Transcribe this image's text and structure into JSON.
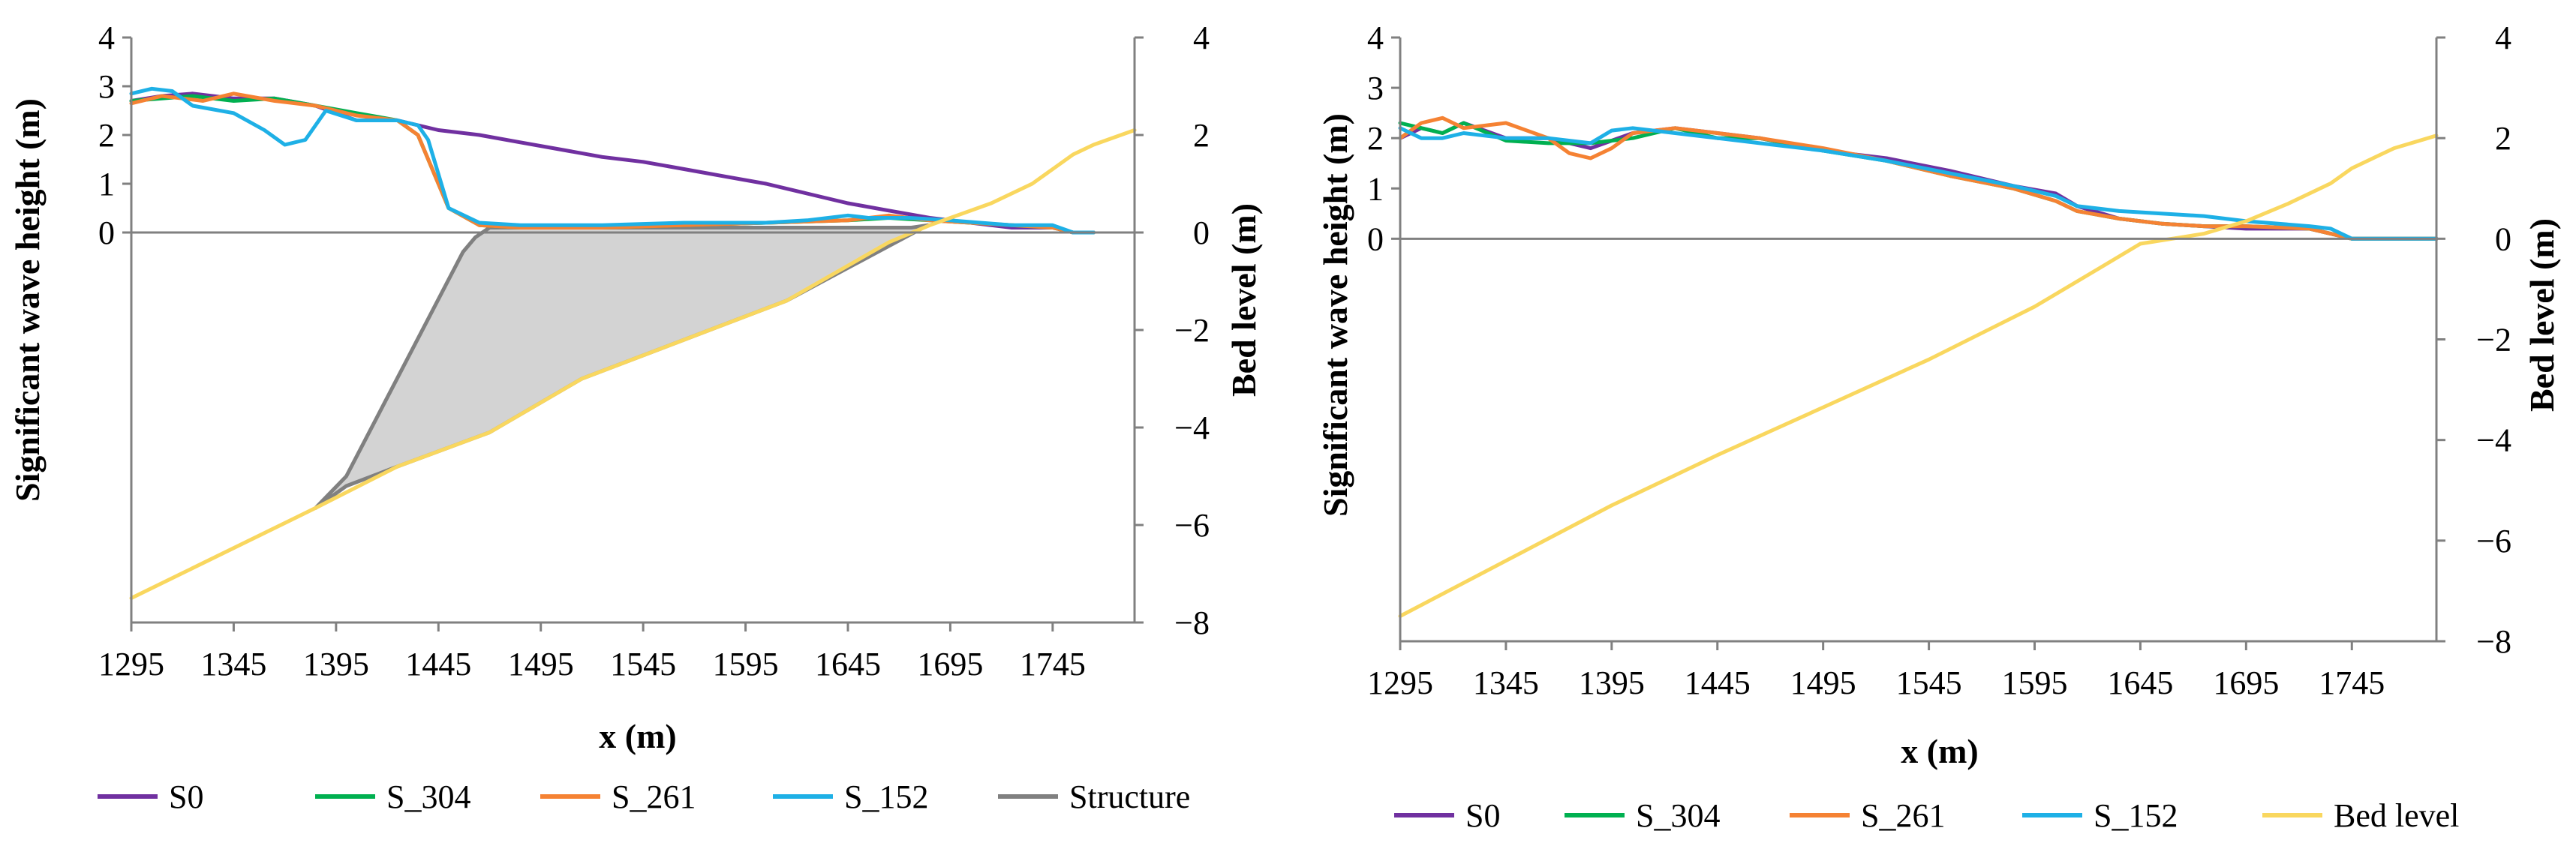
{
  "colors": {
    "S0": "#7030A0",
    "S_304": "#00B050",
    "S_261": "#F58233",
    "S_152": "#1EB0E6",
    "Structure": "#808080",
    "structure_fill": "#D3D3D3",
    "Bed level": "#F9D75F"
  },
  "chart_data": [
    {
      "type": "line",
      "xlabel": "x (m)",
      "ylabel": "Significant wave height (m)",
      "y2label": "Bed level (m)",
      "xlim": [
        1295,
        1785
      ],
      "ylim": [
        -8,
        4
      ],
      "y2lim": [
        -8,
        4
      ],
      "x_ticks": [
        1295,
        1345,
        1395,
        1445,
        1495,
        1545,
        1595,
        1645,
        1695,
        1745
      ],
      "y_ticks": [
        0,
        1,
        2,
        3,
        4
      ],
      "y2_ticks": [
        -8,
        -6,
        -4,
        -2,
        0,
        2,
        4
      ],
      "legend": [
        "S0",
        "S_304",
        "S_261",
        "S_152",
        "Structure"
      ],
      "legend_position": "bottom",
      "grid": false,
      "series": [
        {
          "name": "S0",
          "axis": "y",
          "x": [
            1295,
            1310,
            1325,
            1345,
            1365,
            1385,
            1405,
            1425,
            1445,
            1465,
            1485,
            1505,
            1525,
            1545,
            1565,
            1585,
            1605,
            1625,
            1645,
            1665,
            1685,
            1705,
            1725,
            1745,
            1755,
            1765
          ],
          "y": [
            2.7,
            2.8,
            2.85,
            2.75,
            2.75,
            2.6,
            2.3,
            2.3,
            2.1,
            2.0,
            1.85,
            1.7,
            1.55,
            1.45,
            1.3,
            1.15,
            1.0,
            0.8,
            0.6,
            0.45,
            0.3,
            0.2,
            0.1,
            0.1,
            0.0,
            0.0
          ]
        },
        {
          "name": "S_304",
          "axis": "y",
          "x": [
            1295,
            1310,
            1325,
            1345,
            1365,
            1385,
            1405,
            1425,
            1435,
            1450,
            1465,
            1485,
            1525,
            1565,
            1605,
            1645,
            1665,
            1685,
            1705,
            1725,
            1745,
            1755,
            1765
          ],
          "y": [
            2.7,
            2.75,
            2.8,
            2.7,
            2.75,
            2.6,
            2.45,
            2.3,
            2.0,
            0.5,
            0.15,
            0.1,
            0.1,
            0.15,
            0.2,
            0.25,
            0.3,
            0.25,
            0.2,
            0.15,
            0.1,
            0.0,
            0.0
          ]
        },
        {
          "name": "S_261",
          "axis": "y",
          "x": [
            1295,
            1310,
            1330,
            1345,
            1365,
            1385,
            1405,
            1425,
            1435,
            1450,
            1465,
            1485,
            1525,
            1565,
            1605,
            1645,
            1665,
            1685,
            1705,
            1725,
            1745,
            1755,
            1765
          ],
          "y": [
            2.65,
            2.8,
            2.7,
            2.85,
            2.7,
            2.6,
            2.4,
            2.3,
            2.0,
            0.5,
            0.15,
            0.1,
            0.1,
            0.15,
            0.2,
            0.25,
            0.35,
            0.25,
            0.2,
            0.15,
            0.1,
            0.0,
            0.0
          ]
        },
        {
          "name": "S_152",
          "axis": "y",
          "x": [
            1295,
            1305,
            1315,
            1325,
            1345,
            1360,
            1370,
            1380,
            1390,
            1405,
            1425,
            1435,
            1440,
            1450,
            1465,
            1485,
            1525,
            1565,
            1605,
            1625,
            1645,
            1655,
            1675,
            1695,
            1725,
            1745,
            1755,
            1765
          ],
          "y": [
            2.85,
            2.95,
            2.9,
            2.6,
            2.45,
            2.1,
            1.8,
            1.9,
            2.5,
            2.3,
            2.3,
            2.2,
            1.9,
            0.5,
            0.2,
            0.15,
            0.15,
            0.2,
            0.2,
            0.25,
            0.35,
            0.3,
            0.3,
            0.25,
            0.15,
            0.15,
            0.0,
            0.0
          ]
        },
        {
          "name": "Structure",
          "axis": "y2",
          "shape": "polygon",
          "x": [
            1385,
            1400,
            1457,
            1463,
            1470,
            1676,
            1684,
            1615,
            1565,
            1515,
            1470,
            1425,
            1400,
            1385
          ],
          "y": [
            -5.65,
            -5.0,
            -0.4,
            -0.1,
            0.1,
            0.1,
            0.15,
            -1.4,
            -2.2,
            -3.0,
            -4.1,
            -4.8,
            -5.2,
            -5.65
          ]
        },
        {
          "name": "Bed level",
          "axis": "y2",
          "x": [
            1295,
            1385,
            1425,
            1470,
            1515,
            1565,
            1615,
            1665,
            1685,
            1715,
            1735,
            1745,
            1755,
            1765,
            1785
          ],
          "y": [
            -7.5,
            -5.65,
            -4.8,
            -4.1,
            -3.0,
            -2.2,
            -1.4,
            -0.2,
            0.15,
            0.6,
            1.0,
            1.3,
            1.6,
            1.8,
            2.1
          ]
        }
      ]
    },
    {
      "type": "line",
      "xlabel": "x (m)",
      "ylabel": "Significant wave height (m)",
      "y2label": "Bed level (m)",
      "xlim": [
        1295,
        1785
      ],
      "ylim": [
        -8,
        4
      ],
      "y2lim": [
        -8,
        4
      ],
      "x_ticks": [
        1295,
        1345,
        1395,
        1445,
        1495,
        1545,
        1595,
        1645,
        1695,
        1745
      ],
      "y_ticks": [
        0,
        1,
        2,
        3,
        4
      ],
      "y2_ticks": [
        -8,
        -6,
        -4,
        -2,
        0,
        2,
        4
      ],
      "legend": [
        "S0",
        "S_304",
        "S_261",
        "S_152",
        "Bed level"
      ],
      "legend_position": "bottom",
      "grid": false,
      "series": [
        {
          "name": "S0",
          "axis": "y",
          "x": [
            1295,
            1305,
            1315,
            1325,
            1345,
            1365,
            1385,
            1405,
            1425,
            1445,
            1465,
            1495,
            1525,
            1555,
            1585,
            1605,
            1615,
            1635,
            1655,
            1675,
            1695,
            1725,
            1735,
            1745,
            1765,
            1785
          ],
          "y": [
            2.0,
            2.2,
            2.1,
            2.3,
            2.0,
            2.0,
            1.8,
            2.1,
            2.2,
            2.1,
            2.0,
            1.75,
            1.6,
            1.35,
            1.05,
            0.9,
            0.65,
            0.4,
            0.3,
            0.25,
            0.2,
            0.2,
            0.1,
            0.0,
            0.0,
            0.0
          ]
        },
        {
          "name": "S_304",
          "axis": "y",
          "x": [
            1295,
            1305,
            1315,
            1325,
            1345,
            1365,
            1385,
            1405,
            1425,
            1445,
            1465,
            1495,
            1525,
            1555,
            1585,
            1605,
            1615,
            1635,
            1655,
            1675,
            1695,
            1725,
            1735,
            1745,
            1765,
            1785
          ],
          "y": [
            2.3,
            2.2,
            2.1,
            2.3,
            1.95,
            1.9,
            1.9,
            2.0,
            2.2,
            2.0,
            2.0,
            1.75,
            1.55,
            1.25,
            1.0,
            0.75,
            0.55,
            0.4,
            0.3,
            0.25,
            0.25,
            0.2,
            0.1,
            0.0,
            0.0,
            0.0
          ]
        },
        {
          "name": "S_261",
          "axis": "y",
          "x": [
            1295,
            1305,
            1315,
            1325,
            1345,
            1365,
            1375,
            1385,
            1395,
            1405,
            1425,
            1445,
            1465,
            1495,
            1525,
            1555,
            1585,
            1605,
            1615,
            1635,
            1655,
            1675,
            1695,
            1725,
            1735,
            1745,
            1765,
            1785
          ],
          "y": [
            2.0,
            2.3,
            2.4,
            2.2,
            2.3,
            2.0,
            1.7,
            1.6,
            1.8,
            2.1,
            2.2,
            2.1,
            2.0,
            1.8,
            1.55,
            1.25,
            1.0,
            0.75,
            0.55,
            0.4,
            0.3,
            0.25,
            0.25,
            0.2,
            0.1,
            0.0,
            0.0,
            0.0
          ]
        },
        {
          "name": "S_152",
          "axis": "y",
          "x": [
            1295,
            1305,
            1315,
            1325,
            1345,
            1365,
            1385,
            1395,
            1405,
            1425,
            1445,
            1465,
            1495,
            1525,
            1555,
            1585,
            1605,
            1615,
            1635,
            1655,
            1675,
            1695,
            1725,
            1735,
            1745,
            1765,
            1785
          ],
          "y": [
            2.2,
            2.0,
            2.0,
            2.1,
            2.0,
            2.0,
            1.9,
            2.15,
            2.2,
            2.1,
            2.0,
            1.9,
            1.75,
            1.55,
            1.3,
            1.05,
            0.85,
            0.65,
            0.55,
            0.5,
            0.45,
            0.35,
            0.25,
            0.2,
            0.0,
            0.0,
            0.0
          ]
        },
        {
          "name": "Bed level",
          "axis": "y2",
          "x": [
            1295,
            1345,
            1395,
            1445,
            1495,
            1545,
            1595,
            1625,
            1645,
            1660,
            1675,
            1695,
            1715,
            1735,
            1745,
            1755,
            1765,
            1785
          ],
          "y": [
            -7.5,
            -6.4,
            -5.3,
            -4.3,
            -3.35,
            -2.4,
            -1.35,
            -0.6,
            -0.1,
            0.0,
            0.1,
            0.35,
            0.7,
            1.1,
            1.4,
            1.6,
            1.8,
            2.05
          ]
        }
      ]
    }
  ]
}
